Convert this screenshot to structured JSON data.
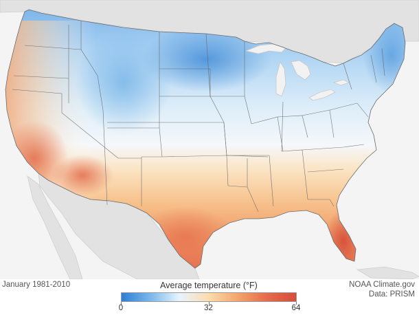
{
  "map": {
    "period": "January 1981-2010",
    "credit_line1": "NOAA Climate.gov",
    "credit_line2": "Data: PRISM"
  },
  "legend": {
    "title": "Average temperature (°F)",
    "colors": [
      "#2c7fd4",
      "#7ab8ec",
      "#e8f4fc",
      "#fcdcae",
      "#f3a46c",
      "#e56b4c",
      "#d64e3a"
    ],
    "ticks": [
      {
        "value": 0,
        "label": "0"
      },
      {
        "value": 32,
        "label": "32"
      },
      {
        "value": 64,
        "label": "64"
      }
    ],
    "min": 0,
    "max": 64
  }
}
